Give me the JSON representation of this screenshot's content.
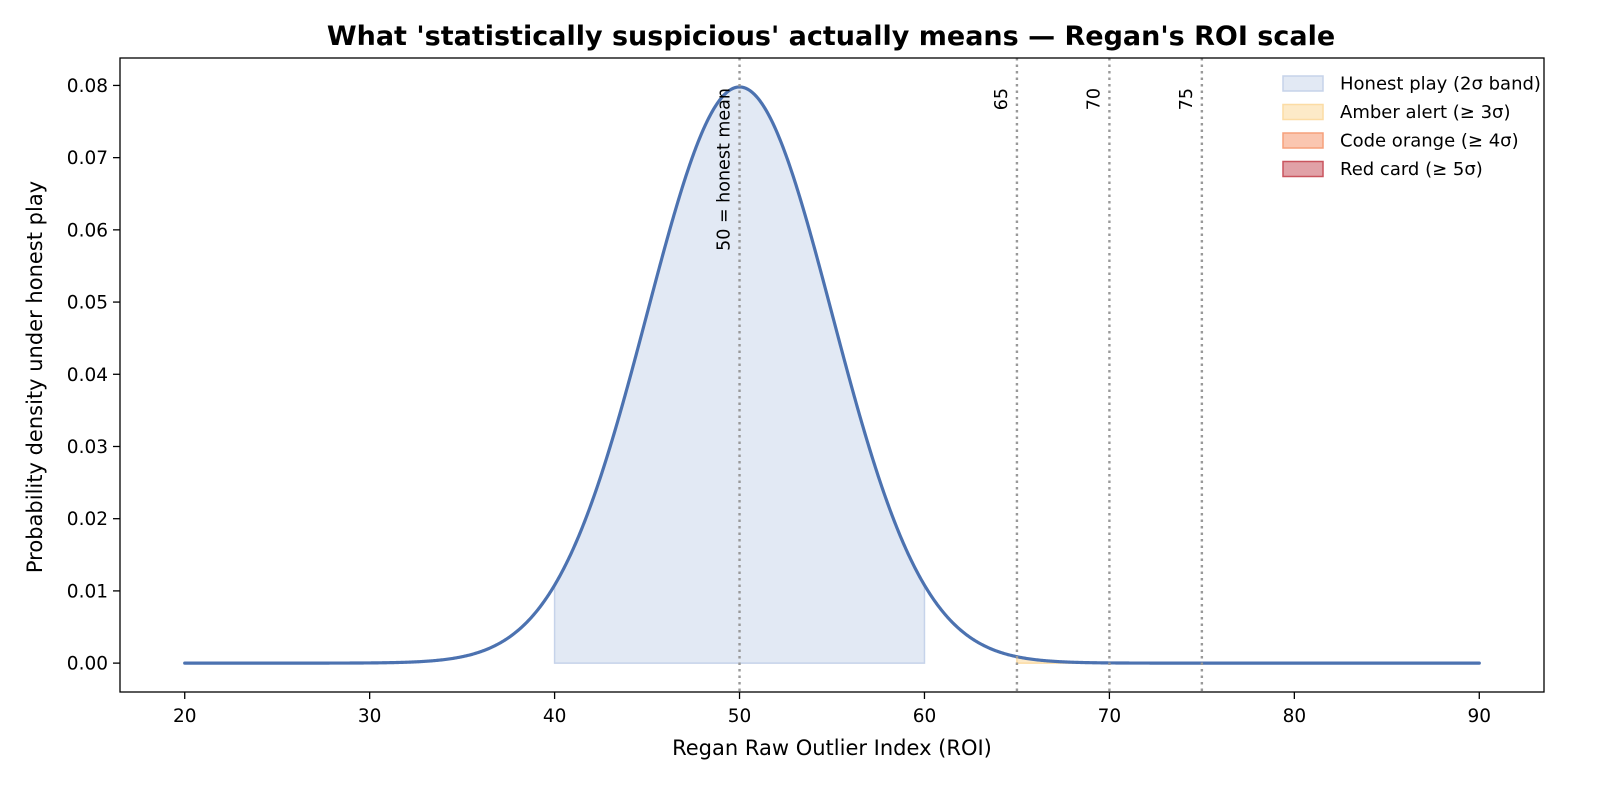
{
  "chart_data": {
    "type": "area",
    "title": "What 'statistically suspicious' actually means — Regan's ROI scale",
    "xlabel": "Regan Raw Outlier Index (ROI)",
    "ylabel": "Probability density under honest play",
    "xlim": [
      16.5,
      93.5
    ],
    "ylim": [
      -0.004,
      0.0838
    ],
    "xticks": [
      20,
      30,
      40,
      50,
      60,
      70,
      80,
      90
    ],
    "yticks": [
      0.0,
      0.01,
      0.02,
      0.03,
      0.04,
      0.05,
      0.06,
      0.07,
      0.08
    ],
    "ytick_labels": [
      "0.00",
      "0.01",
      "0.02",
      "0.03",
      "0.04",
      "0.05",
      "0.06",
      "0.07",
      "0.08"
    ],
    "grid": false,
    "legend_position": "top-right",
    "series": [
      {
        "kind": "density-curve",
        "distribution": "normal",
        "mean": 50,
        "sd": 5,
        "x_range": [
          20,
          90
        ],
        "color": "#4c72b0"
      }
    ],
    "bands": [
      {
        "name": "Honest play (2σ band)",
        "from": 40,
        "to": 60,
        "color": "#c6d3ea"
      },
      {
        "name": "Amber alert (≥ 3σ)",
        "from": 65,
        "to": 70,
        "color": "#fcdca4"
      },
      {
        "name": "Code orange (≥ 4σ)",
        "from": 70,
        "to": 75,
        "color": "#f6a07b"
      },
      {
        "name": "Red card (≥ 5σ)",
        "from": 75,
        "to": 90,
        "color": "#c9545e"
      }
    ],
    "reference_lines": [
      {
        "x": 50,
        "label": "50 = honest mean"
      },
      {
        "x": 65,
        "label": "65"
      },
      {
        "x": 70,
        "label": "70"
      },
      {
        "x": 75,
        "label": "75"
      }
    ]
  }
}
